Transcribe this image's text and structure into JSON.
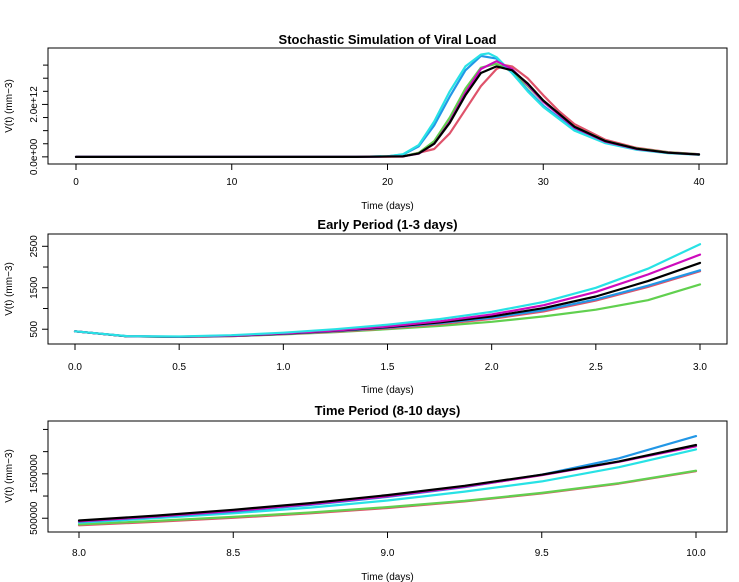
{
  "colors": {
    "black": "#000000",
    "red": "#df536b",
    "green": "#61d04f",
    "blue": "#2297e6",
    "cyan": "#28e2e5",
    "magenta": "#cd0bbc",
    "yellow": "#f5c710",
    "gray": "#9e9e9e"
  },
  "chart_data": [
    {
      "type": "line",
      "title": "Stochastic Simulation of Viral Load",
      "xlabel": "Time (days)",
      "ylabel": "V(t) (mm−3)",
      "xlim": [
        0,
        40
      ],
      "ylim": [
        -120000000000.0,
        4000000000000.0
      ],
      "xticks": [
        0,
        10,
        20,
        30,
        40
      ],
      "xtick_labels": [
        "0",
        "10",
        "20",
        "30",
        "40"
      ],
      "yticks": [
        0,
        2000000000000.0
      ],
      "ytick_labels": [
        "0.0e+00",
        "2.0e+12"
      ],
      "minor_yticks": [
        500000000000.0,
        1000000000000.0,
        1500000000000.0,
        2500000000000.0,
        3000000000000.0,
        3500000000000.0
      ],
      "series": [
        {
          "color": "#df536b",
          "x": [
            0,
            18,
            21,
            23,
            24,
            25,
            26,
            27,
            27.5,
            28,
            29,
            30,
            31,
            32,
            34,
            36,
            38,
            40
          ],
          "y": [
            0,
            0,
            10000000000.0,
            300000000000.0,
            900000000000.0,
            1800000000000.0,
            2700000000000.0,
            3350000000000.0,
            3500000000000.0,
            3450000000000.0,
            3000000000000.0,
            2350000000000.0,
            1750000000000.0,
            1250000000000.0,
            650000000000.0,
            340000000000.0,
            180000000000.0,
            100000000000.0
          ]
        },
        {
          "color": "#61d04f",
          "x": [
            0,
            18,
            21,
            22,
            23,
            24,
            25,
            26,
            27,
            28,
            29,
            30,
            32,
            34,
            36,
            38,
            40
          ],
          "y": [
            0,
            0,
            30000000000.0,
            150000000000.0,
            600000000000.0,
            1500000000000.0,
            2600000000000.0,
            3400000000000.0,
            3550000000000.0,
            3250000000000.0,
            2700000000000.0,
            2100000000000.0,
            1150000000000.0,
            600000000000.0,
            320000000000.0,
            170000000000.0,
            100000000000.0
          ]
        },
        {
          "color": "#2297e6",
          "x": [
            0,
            18,
            20,
            21,
            22,
            23,
            24,
            25,
            26,
            27,
            28,
            29,
            30,
            32,
            34,
            36,
            38,
            40
          ],
          "y": [
            0,
            0,
            20000000000.0,
            90000000000.0,
            400000000000.0,
            1200000000000.0,
            2300000000000.0,
            3300000000000.0,
            3850000000000.0,
            3750000000000.0,
            3200000000000.0,
            2550000000000.0,
            1950000000000.0,
            1050000000000.0,
            550000000000.0,
            290000000000.0,
            150000000000.0,
            90000000000.0
          ]
        },
        {
          "color": "#28e2e5",
          "x": [
            0,
            18,
            20,
            21,
            22,
            23,
            24,
            25,
            26,
            26.5,
            27,
            28,
            29,
            30,
            32,
            34,
            36,
            38,
            40
          ],
          "y": [
            0,
            0,
            20000000000.0,
            100000000000.0,
            450000000000.0,
            1350000000000.0,
            2500000000000.0,
            3450000000000.0,
            3900000000000.0,
            3950000000000.0,
            3800000000000.0,
            3200000000000.0,
            2500000000000.0,
            1900000000000.0,
            1000000000000.0,
            520000000000.0,
            270000000000.0,
            140000000000.0,
            80000000000.0
          ]
        },
        {
          "color": "#cd0bbc",
          "x": [
            0,
            18,
            21,
            22,
            23,
            24,
            25,
            26,
            27,
            28,
            29,
            30,
            32,
            34,
            36,
            38,
            40
          ],
          "y": [
            0,
            0,
            20000000000.0,
            120000000000.0,
            500000000000.0,
            1350000000000.0,
            2450000000000.0,
            3350000000000.0,
            3650000000000.0,
            3350000000000.0,
            2750000000000.0,
            2100000000000.0,
            1120000000000.0,
            580000000000.0,
            300000000000.0,
            160000000000.0,
            90000000000.0
          ]
        },
        {
          "color": "#000000",
          "x": [
            0,
            18,
            21,
            22,
            23,
            24,
            25,
            26,
            27,
            28,
            29,
            30,
            32,
            34,
            36,
            38,
            40
          ],
          "y": [
            0,
            0,
            20000000000.0,
            130000000000.0,
            500000000000.0,
            1300000000000.0,
            2350000000000.0,
            3200000000000.0,
            3450000000000.0,
            3300000000000.0,
            2800000000000.0,
            2150000000000.0,
            1150000000000.0,
            600000000000.0,
            310000000000.0,
            160000000000.0,
            90000000000.0
          ]
        }
      ]
    },
    {
      "type": "line",
      "title": "Early Period (1-3 days)",
      "xlabel": "Time (days)",
      "ylabel": "V(t) (mm−3)",
      "xlim": [
        0,
        3
      ],
      "ylim": [
        240,
        2700
      ],
      "xticks": [
        0.0,
        0.5,
        1.0,
        1.5,
        2.0,
        2.5,
        3.0
      ],
      "xtick_labels": [
        "0.0",
        "0.5",
        "1.0",
        "1.5",
        "2.0",
        "2.5",
        "3.0"
      ],
      "yticks": [
        500,
        1500,
        2500
      ],
      "ytick_labels": [
        "500",
        "1500",
        "2500"
      ],
      "minor_yticks": [
        1000,
        2000
      ],
      "series": [
        {
          "color": "#61d04f",
          "x": [
            0,
            0.25,
            0.5,
            0.75,
            1.0,
            1.25,
            1.5,
            1.75,
            2.0,
            2.25,
            2.5,
            2.75,
            3.0
          ],
          "y": [
            450,
            330,
            315,
            335,
            375,
            430,
            500,
            580,
            680,
            810,
            970,
            1200,
            1580
          ]
        },
        {
          "color": "#df536b",
          "x": [
            0,
            0.25,
            0.5,
            0.75,
            1.0,
            1.25,
            1.5,
            1.75,
            2.0,
            2.25,
            2.5,
            2.75,
            3.0
          ],
          "y": [
            450,
            330,
            315,
            335,
            380,
            440,
            520,
            620,
            750,
            930,
            1190,
            1520,
            1900
          ]
        },
        {
          "color": "#2297e6",
          "x": [
            0,
            0.25,
            0.5,
            0.75,
            1.0,
            1.25,
            1.5,
            1.75,
            2.0,
            2.25,
            2.5,
            2.75,
            3.0
          ],
          "y": [
            450,
            330,
            318,
            340,
            388,
            455,
            540,
            645,
            780,
            960,
            1220,
            1550,
            1920
          ]
        },
        {
          "color": "#000000",
          "x": [
            0,
            0.25,
            0.5,
            0.75,
            1.0,
            1.25,
            1.5,
            1.75,
            2.0,
            2.25,
            2.5,
            2.75,
            3.0
          ],
          "y": [
            450,
            330,
            318,
            342,
            392,
            462,
            552,
            665,
            810,
            1010,
            1290,
            1660,
            2100
          ]
        },
        {
          "color": "#cd0bbc",
          "x": [
            0,
            0.25,
            0.5,
            0.75,
            1.0,
            1.25,
            1.5,
            1.75,
            2.0,
            2.25,
            2.5,
            2.75,
            3.0
          ],
          "y": [
            450,
            332,
            320,
            345,
            398,
            470,
            565,
            690,
            855,
            1080,
            1400,
            1820,
            2300
          ]
        },
        {
          "color": "#28e2e5",
          "x": [
            0,
            0.25,
            0.5,
            0.75,
            1.0,
            1.25,
            1.5,
            1.75,
            2.0,
            2.25,
            2.5,
            2.75,
            3.0
          ],
          "y": [
            450,
            335,
            325,
            355,
            415,
            500,
            610,
            745,
            920,
            1160,
            1500,
            1960,
            2550
          ]
        }
      ]
    },
    {
      "type": "line",
      "title": "Time Period (8-10 days)",
      "xlabel": "Time (days)",
      "ylabel": "V(t) (mm−3)",
      "xlim": [
        8,
        10
      ],
      "ylim": [
        280000,
        2600000
      ],
      "xticks": [
        8.0,
        8.5,
        9.0,
        9.5,
        10.0
      ],
      "xtick_labels": [
        "8.0",
        "8.5",
        "9.0",
        "9.5",
        "10.0"
      ],
      "yticks": [
        500000,
        1500000
      ],
      "ytick_labels": [
        "500000",
        "1500000"
      ],
      "minor_yticks": [
        1000000,
        2000000,
        2500000
      ],
      "series": [
        {
          "color": "#df536b",
          "x": [
            8.0,
            8.25,
            8.5,
            8.75,
            9.0,
            9.25,
            9.5,
            9.75,
            10.0
          ],
          "y": [
            340000,
            420000,
            510000,
            610000,
            730000,
            880000,
            1060000,
            1280000,
            1560000
          ]
        },
        {
          "color": "#61d04f",
          "x": [
            8.0,
            8.25,
            8.5,
            8.75,
            9.0,
            9.25,
            9.5,
            9.75,
            10.0
          ],
          "y": [
            360000,
            440000,
            530000,
            630000,
            750000,
            890000,
            1070000,
            1290000,
            1570000
          ]
        },
        {
          "color": "#28e2e5",
          "x": [
            8.0,
            8.25,
            8.5,
            8.75,
            9.0,
            9.25,
            9.5,
            9.75,
            10.0
          ],
          "y": [
            400000,
            500000,
            610000,
            740000,
            900000,
            1100000,
            1330000,
            1650000,
            2050000
          ]
        },
        {
          "color": "#2297e6",
          "x": [
            8.0,
            8.25,
            8.5,
            8.75,
            9.0,
            9.25,
            9.5,
            9.75,
            10.0
          ],
          "y": [
            420000,
            530000,
            650000,
            800000,
            980000,
            1200000,
            1480000,
            1850000,
            2350000
          ]
        },
        {
          "color": "#cd0bbc",
          "x": [
            8.0,
            8.25,
            8.5,
            8.75,
            9.0,
            9.25,
            9.5,
            9.75,
            10.0
          ],
          "y": [
            430000,
            540000,
            665000,
            815000,
            995000,
            1210000,
            1470000,
            1770000,
            2120000
          ]
        },
        {
          "color": "#000000",
          "x": [
            8.0,
            8.25,
            8.5,
            8.75,
            9.0,
            9.25,
            9.5,
            9.75,
            10.0
          ],
          "y": [
            450000,
            560000,
            690000,
            840000,
            1020000,
            1230000,
            1480000,
            1780000,
            2150000
          ]
        }
      ]
    }
  ]
}
